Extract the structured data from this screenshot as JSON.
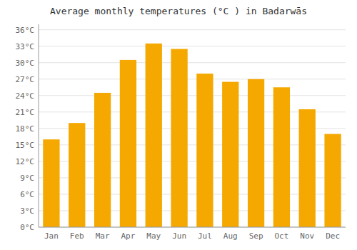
{
  "chart_data": {
    "type": "bar",
    "title": "Average monthly temperatures (°C ) in Badarwās",
    "categories": [
      "Jan",
      "Feb",
      "Mar",
      "Apr",
      "May",
      "Jun",
      "Jul",
      "Aug",
      "Sep",
      "Oct",
      "Nov",
      "Dec"
    ],
    "values": [
      16,
      19,
      24.5,
      30.5,
      33.5,
      32.5,
      28,
      26.5,
      27,
      25.5,
      21.5,
      17
    ],
    "color": "#F5A800",
    "ylim": [
      0,
      37
    ],
    "yticks": [
      {
        "value": 0,
        "label": "0°C"
      },
      {
        "value": 3,
        "label": "3°C"
      },
      {
        "value": 6,
        "label": "6°C"
      },
      {
        "value": 9,
        "label": "9°C"
      },
      {
        "value": 12,
        "label": "12°C"
      },
      {
        "value": 15,
        "label": "15°C"
      },
      {
        "value": 18,
        "label": "18°C"
      },
      {
        "value": 21,
        "label": "21°C"
      },
      {
        "value": 24,
        "label": "24°C"
      },
      {
        "value": 27,
        "label": "27°C"
      },
      {
        "value": 30,
        "label": "30°C"
      },
      {
        "value": 33,
        "label": "33°C"
      },
      {
        "value": 36,
        "label": "36°C"
      }
    ],
    "grid": true
  }
}
